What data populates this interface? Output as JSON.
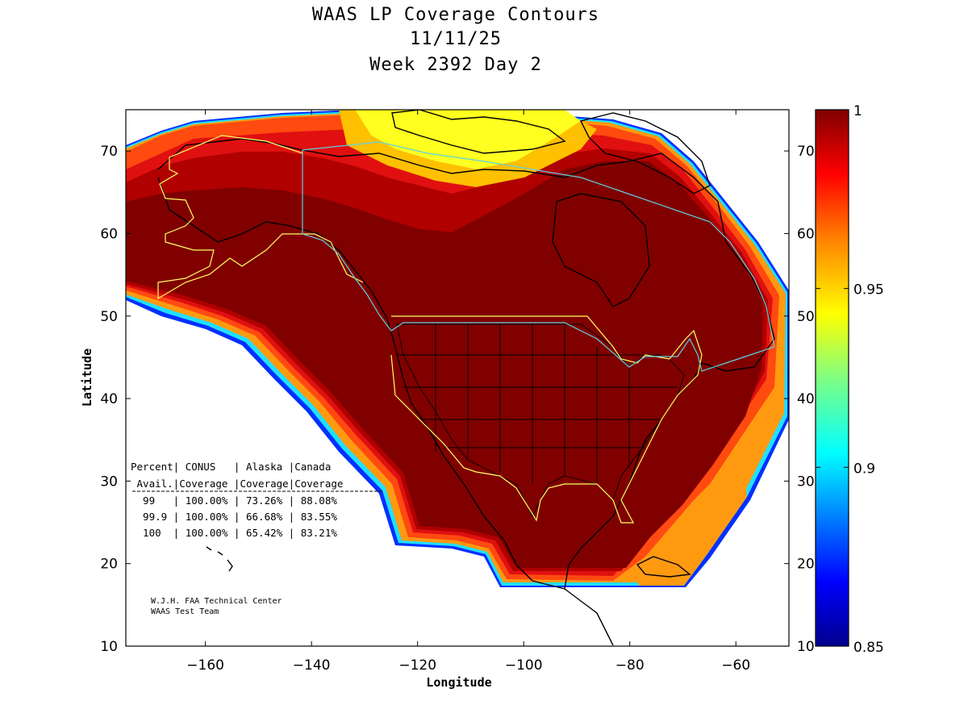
{
  "titles": [
    "WAAS LP Coverage Contours",
    "11/11/25",
    "Week 2392 Day 2"
  ],
  "map": {
    "xlabel": "Longitude",
    "ylabel": "Latitude",
    "xlim": [
      -175,
      -50
    ],
    "ylim": [
      10,
      75
    ],
    "xticks": [
      -160,
      -140,
      -120,
      -100,
      -80,
      -60
    ],
    "yticks": [
      10,
      20,
      30,
      40,
      50,
      60,
      70
    ],
    "colors": {
      "background": "#ffffff",
      "coverage_full": "#800000",
      "coastline": "#000000",
      "service_volume_outline": "#ffff66",
      "canada_outline": "#5fd0e0"
    }
  },
  "colorbar": {
    "range": [
      0.85,
      1
    ],
    "tick_labels": [
      "1",
      "0.95",
      "0.9",
      "0.85"
    ],
    "tick_values": [
      1,
      0.95,
      0.9,
      0.85
    ],
    "colormap": "jet"
  },
  "table": {
    "header1": "Percent| CONUS   | Alaska |Canada",
    "header2": " Avail.|Coverage |Coverage|Coverage",
    "rows": [
      "  99   | 100.00% | 73.26% | 88.08%",
      "  99.9 | 100.00% | 66.68% | 83.55%",
      "  100  | 100.00% | 65.42% | 83.21%"
    ]
  },
  "credit": [
    "W.J.H. FAA Technical Center",
    "WAAS Test Team"
  ]
}
